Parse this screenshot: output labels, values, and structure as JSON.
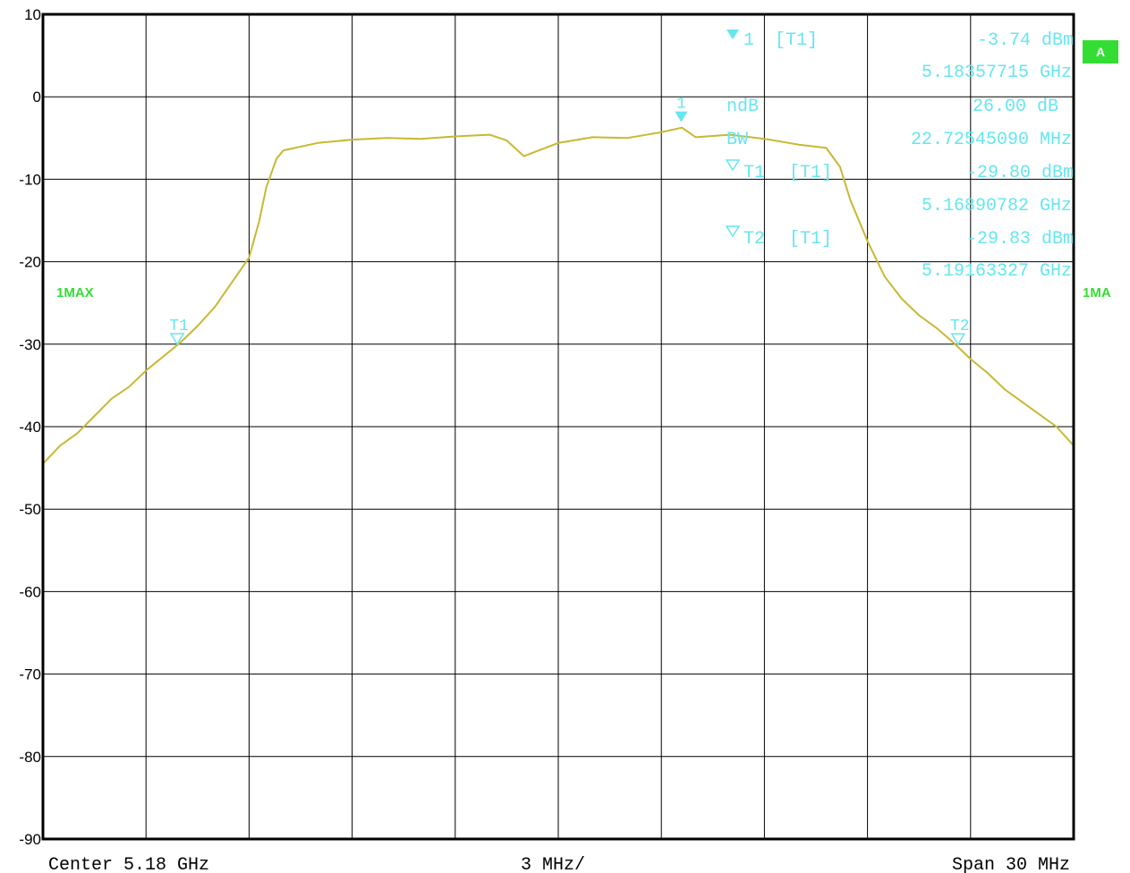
{
  "chart_data": {
    "type": "line",
    "ylim": [
      -90,
      10
    ],
    "xlim_ghz": [
      5.165,
      5.195
    ],
    "y_ticks": [
      "10",
      "0",
      "-10",
      "-20",
      "-30",
      "-40",
      "-50",
      "-60",
      "-70",
      "-80",
      "-90"
    ],
    "x_divisions": 10,
    "grid": true,
    "series": [
      {
        "color": "#c8b832",
        "x": [
          5.165,
          5.1655,
          5.166,
          5.1665,
          5.167,
          5.1675,
          5.168,
          5.1685,
          5.169,
          5.1695,
          5.17,
          5.1705,
          5.171,
          5.1713,
          5.1715,
          5.1718,
          5.172,
          5.173,
          5.174,
          5.175,
          5.176,
          5.177,
          5.178,
          5.1785,
          5.179,
          5.18,
          5.181,
          5.182,
          5.183,
          5.1836,
          5.184,
          5.185,
          5.186,
          5.187,
          5.1878,
          5.1882,
          5.1885,
          5.189,
          5.1895,
          5.19,
          5.1905,
          5.191,
          5.1915,
          5.192,
          5.1925,
          5.193,
          5.1935,
          5.194,
          5.1945,
          5.195
        ],
        "y": [
          -44.5,
          -42.3,
          -40.8,
          -38.7,
          -36.6,
          -35.2,
          -33.2,
          -31.5,
          -29.8,
          -27.8,
          -25.5,
          -22.5,
          -19.5,
          -15.0,
          -11.0,
          -7.5,
          -6.5,
          -5.6,
          -5.2,
          -5.0,
          -5.1,
          -4.8,
          -4.6,
          -5.3,
          -7.2,
          -5.6,
          -4.9,
          -5.0,
          -4.3,
          -3.74,
          -4.9,
          -4.6,
          -5.1,
          -5.8,
          -6.2,
          -8.5,
          -12.5,
          -17.5,
          -21.8,
          -24.5,
          -26.5,
          -28.0,
          -29.8,
          -31.8,
          -33.5,
          -35.5,
          -37.0,
          -38.5,
          -40.0,
          -42.3
        ]
      }
    ]
  },
  "trace_label": "1MAX",
  "trace_label_right": "1MA",
  "a_badge": "A",
  "marker1": {
    "label": "1",
    "ref": "[T1]",
    "level": "-3.74 dBm",
    "freq": "5.18357715 GHz",
    "freq_ghz": 5.18357715,
    "level_db": -3.74
  },
  "ndb": {
    "label": "ndB",
    "value": "26.00 dB"
  },
  "bw": {
    "label": "BW",
    "value": "22.72545090 MHz"
  },
  "t1": {
    "label": "T1",
    "ref": "[T1]",
    "level": "-29.80 dBm",
    "freq": "5.16890782 GHz",
    "freq_ghz": 5.16890782,
    "level_db": -29.8
  },
  "t2": {
    "label": "T2",
    "ref": "[T1]",
    "level": "-29.83 dBm",
    "freq": "5.19163327 GHz",
    "freq_ghz": 5.19163327,
    "level_db": -29.83
  },
  "footer": {
    "center": "Center 5.18 GHz",
    "div": "3 MHz/",
    "span": "Span 30 MHz"
  },
  "colors": {
    "trace": "#c8b832",
    "marker": "#66e6ee",
    "green": "#33dd33",
    "grid": "#000000"
  }
}
